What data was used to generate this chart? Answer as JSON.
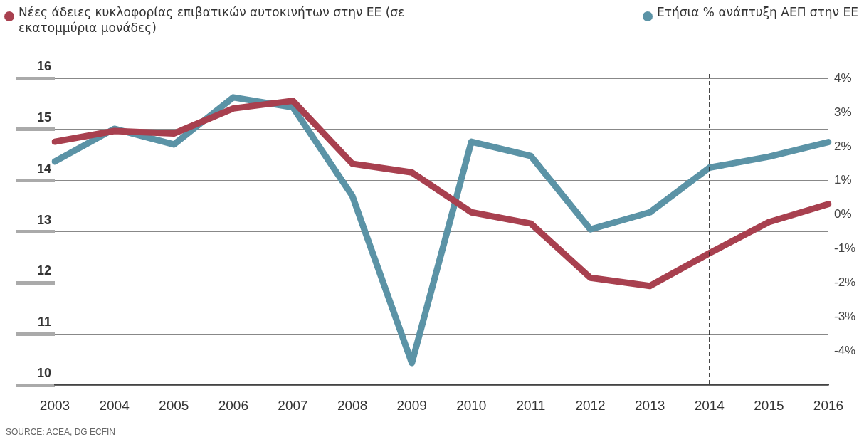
{
  "chart_data": {
    "type": "line",
    "categories": [
      "2003",
      "2004",
      "2005",
      "2006",
      "2007",
      "2008",
      "2009",
      "2010",
      "2011",
      "2012",
      "2013",
      "2014",
      "2015",
      "2016"
    ],
    "series": [
      {
        "name": "Νέες άδειες κυκλοφορίας επιβατικών αυτοκινήτων στην ΕΕ (σε εκατομμύρια μονάδες)",
        "color": "#a8404f",
        "values": [
          14.76,
          14.97,
          14.92,
          15.41,
          15.56,
          14.33,
          14.16,
          13.38,
          13.16,
          12.1,
          11.94,
          12.58,
          13.19,
          13.54
        ]
      },
      {
        "name": "Ετήσια % ανάπτυξη ΑΕΠ στην ΕΕ",
        "color": "#5b93a6",
        "axis": "y2",
        "values": [
          1.56,
          2.52,
          2.06,
          3.44,
          3.15,
          0.55,
          -4.35,
          2.14,
          1.72,
          -0.43,
          0.07,
          1.38,
          1.7,
          2.13
        ]
      }
    ],
    "ylim": [
      10,
      16
    ],
    "yticks": [
      10,
      11,
      12,
      13,
      14,
      15,
      16
    ],
    "y2lim": [
      -5,
      4
    ],
    "y2ticks": [
      {
        "value": -5,
        "label": null
      },
      {
        "value": -4,
        "label": "-4%"
      },
      {
        "value": -3,
        "label": "-3%"
      },
      {
        "value": -2,
        "label": "-2%"
      },
      {
        "value": -1,
        "label": "-1%"
      },
      {
        "value": 0,
        "label": "0%"
      },
      {
        "value": 1,
        "label": "1%"
      },
      {
        "value": 2,
        "label": "2%"
      },
      {
        "value": 3,
        "label": "3%"
      },
      {
        "value": 4,
        "label": "4%"
      }
    ],
    "grid": "y",
    "legend": "top",
    "marker": "none",
    "line_style": "solid",
    "ref_lines": [
      {
        "axis": "x",
        "value": "2014",
        "line_style": "dashed",
        "color": "#222222"
      }
    ],
    "annotations": [
      "SOURCE: ACEA, DG ECFIN"
    ]
  }
}
